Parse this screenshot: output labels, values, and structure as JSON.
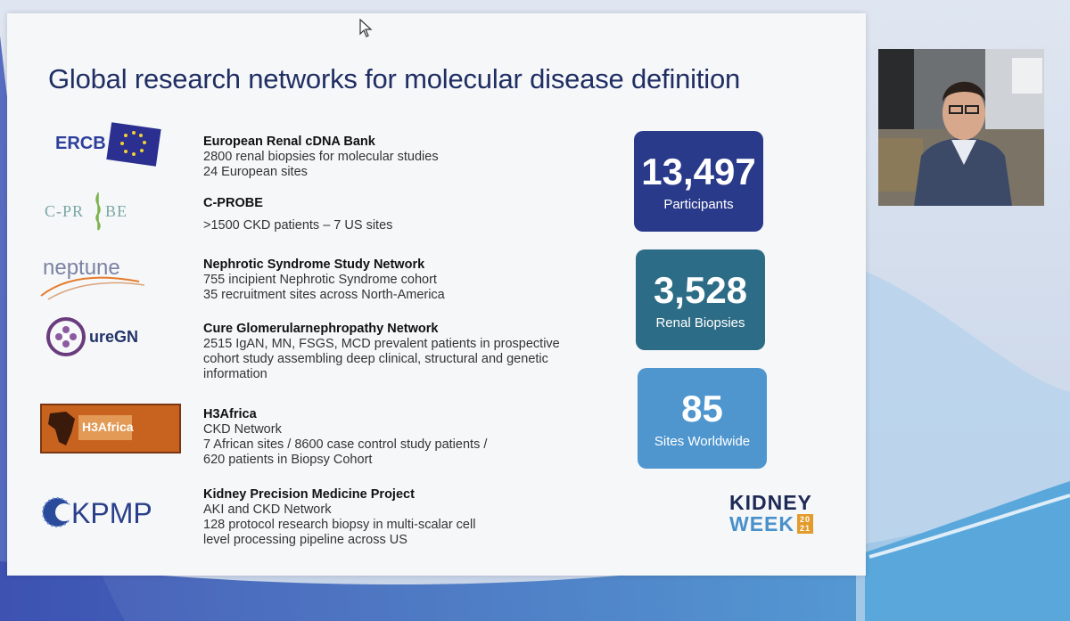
{
  "slide": {
    "title": "Global research networks for molecular disease definition",
    "networks": [
      {
        "logo_text": "ERCB",
        "name": "European Renal cDNA Bank",
        "lines": [
          "2800 renal biopsies for molecular studies",
          "24 European sites"
        ]
      },
      {
        "logo_text": "C-PROBE",
        "name": "C-PROBE",
        "lines": [
          ">1500 CKD patients – 7 US sites"
        ]
      },
      {
        "logo_text": "neptune",
        "name": "Nephrotic Syndrome Study Network",
        "lines": [
          "755 incipient Nephrotic Syndrome cohort",
          "35 recruitment sites across North-America"
        ]
      },
      {
        "logo_text": "ureGN",
        "name": "Cure Glomerularnephropathy Network",
        "lines": [
          "2515 IgAN, MN, FSGS, MCD prevalent patients in prospective",
          "cohort study assembling deep clinical, structural and genetic",
          "information"
        ]
      },
      {
        "logo_text": "H3Africa",
        "name": "H3Africa",
        "lines": [
          "CKD Network",
          "7 African sites / 8600 case control study patients /",
          "620 patients in Biopsy Cohort"
        ]
      },
      {
        "logo_text": "KPMP",
        "name": "Kidney Precision Medicine Project",
        "lines": [
          "AKI and CKD Network",
          "128 protocol research biopsy in multi-scalar cell",
          "level processing pipeline across US"
        ]
      }
    ],
    "stats": [
      {
        "value": "13,497",
        "label": "Participants",
        "color": "#2a3a8a"
      },
      {
        "value": "3,528",
        "label": "Renal Biopsies",
        "color": "#2d6c86"
      },
      {
        "value": "85",
        "label": "Sites Worldwide",
        "color": "#4f96cf"
      }
    ],
    "event_logo": {
      "line1": "KIDNEY",
      "line2": "WEEK",
      "year_top": "20",
      "year_bottom": "21"
    }
  },
  "colors": {
    "title": "#1f2e63",
    "slide_bg": "#f6f7f9"
  }
}
